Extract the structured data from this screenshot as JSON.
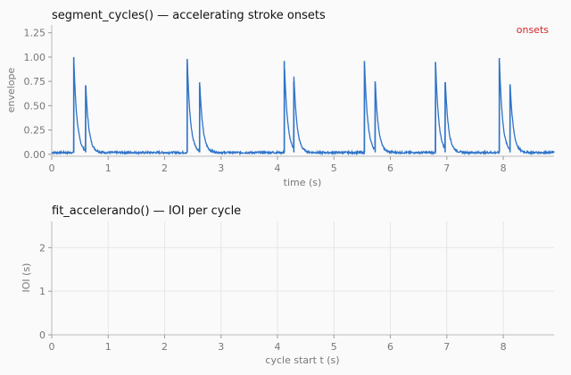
{
  "chart_data": [
    {
      "type": "line",
      "title": "segment_cycles() — accelerating stroke onsets",
      "xlabel": "time (s)",
      "ylabel": "envelope",
      "xlim": [
        0,
        8.9
      ],
      "ylim": [
        -0.02,
        1.33
      ],
      "xticks": [
        0,
        1,
        2,
        3,
        4,
        5,
        6,
        7,
        8
      ],
      "yticks": [
        0.0,
        0.25,
        0.5,
        0.75,
        1.0,
        1.25
      ],
      "ytick_labels": [
        "0.00",
        "0.25",
        "0.50",
        "0.75",
        "1.00",
        "1.25"
      ],
      "grid": false,
      "legend": "onsets",
      "legend_placement": "top-right",
      "series": [
        {
          "color": "#2f74c8",
          "peaks": [
            {
              "t": 0.39,
              "amp": 1.0
            },
            {
              "t": 0.6,
              "amp": 0.71
            },
            {
              "t": 2.4,
              "amp": 0.98
            },
            {
              "t": 2.62,
              "amp": 0.74
            },
            {
              "t": 4.12,
              "amp": 0.96
            },
            {
              "t": 4.29,
              "amp": 0.75
            },
            {
              "t": 5.54,
              "amp": 0.96
            },
            {
              "t": 5.73,
              "amp": 0.75
            },
            {
              "t": 6.8,
              "amp": 0.95
            },
            {
              "t": 6.97,
              "amp": 0.74
            },
            {
              "t": 7.93,
              "amp": 0.99
            },
            {
              "t": 8.12,
              "amp": 0.72
            }
          ],
          "noise_floor": 0.02
        }
      ],
      "legend_color": "#d62728"
    },
    {
      "type": "scatter",
      "title": "fit_accelerando() — IOI per cycle",
      "xlabel": "cycle start t (s)",
      "ylabel": "IOI (s)",
      "xlim": [
        0,
        8.9
      ],
      "ylim": [
        0,
        2.6
      ],
      "xticks": [
        0,
        1,
        2,
        3,
        4,
        5,
        6,
        7,
        8
      ],
      "yticks": [
        0,
        1,
        2
      ],
      "ytick_labels": [
        "0",
        "1",
        "2"
      ],
      "grid": true,
      "series": []
    }
  ]
}
